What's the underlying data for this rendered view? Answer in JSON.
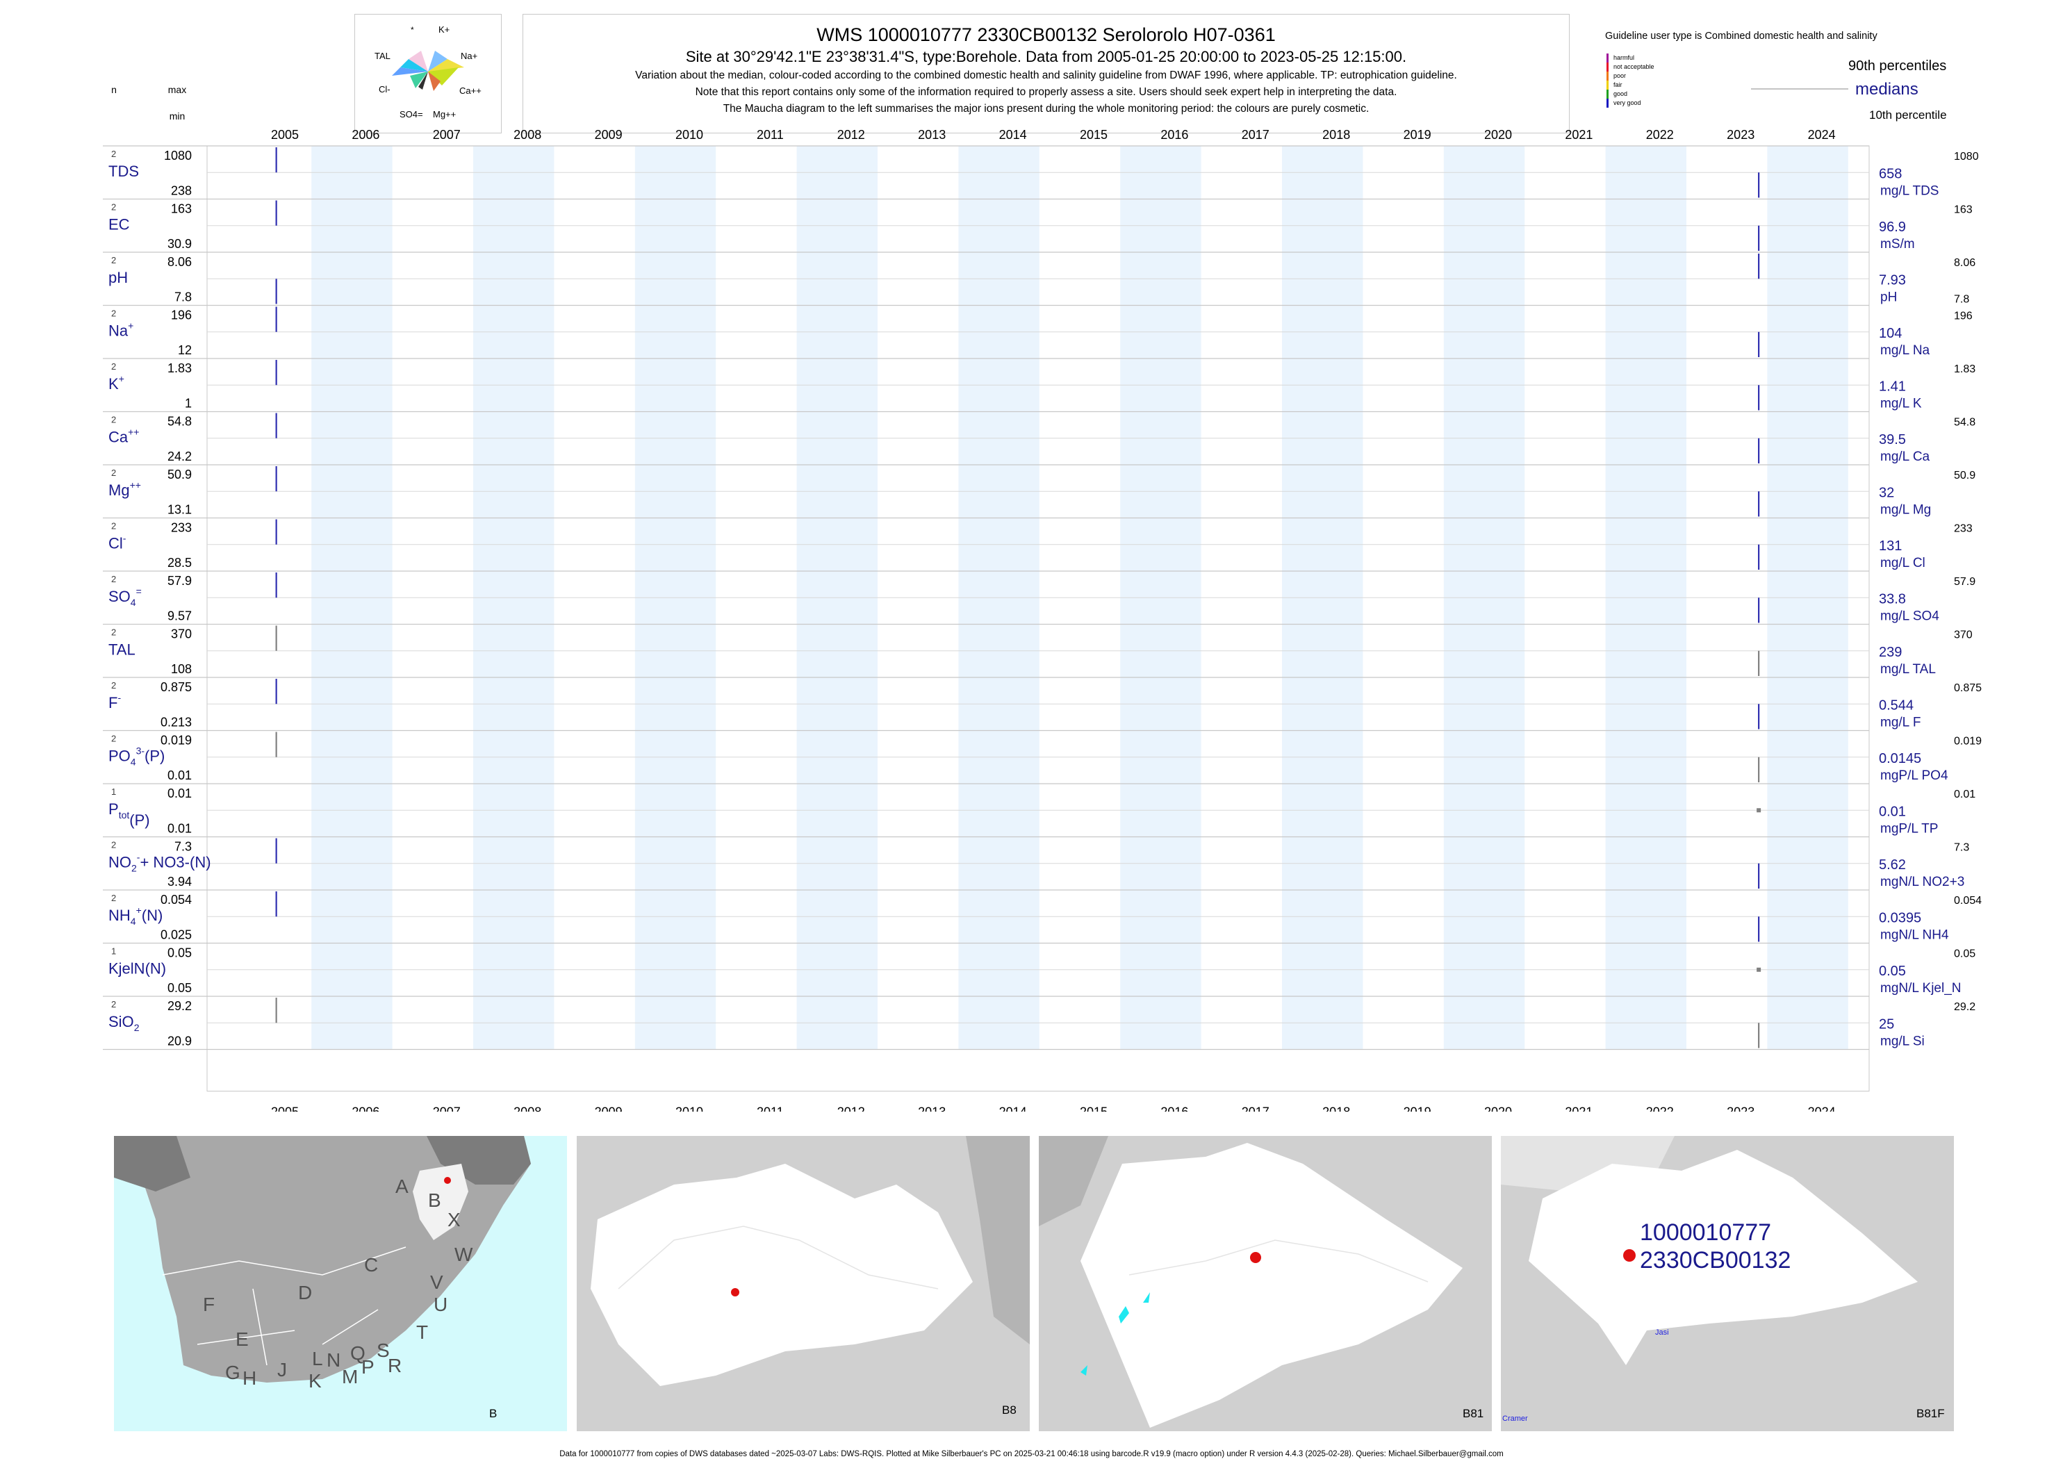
{
  "header": {
    "title": "WMS 1000010777 2330CB00132 Serolorolo H07-0361",
    "site_line": "Site at 30°29'42.1\"E 23°38'31.4\"S, type:Borehole.  Data from 2005-01-25 20:00:00 to 2023-05-25 12:15:00.",
    "note1": "Variation about the median,  colour-coded according to the combined domestic health and salinity guideline from DWAF 1996, where applicable. TP: eutrophication guideline.",
    "note2": "Note that this report contains only some of the information required to properly assess a site. Users should seek expert help in interpreting the data.",
    "note3": "The Maucha diagram to the left summarises the major ions present during the whole monitoring period: the colours are purely cosmetic."
  },
  "maucha": {
    "labels": [
      "*",
      "K+",
      "TAL",
      "Na+",
      "Cl-",
      "Ca++",
      "SO4=",
      "Mg++"
    ]
  },
  "legend": {
    "guideline_user": "Guideline user type is Combined domestic health and salinity",
    "classes": [
      {
        "label": "harmful",
        "color": "#a0149a"
      },
      {
        "label": "not acceptable",
        "color": "#e8102a"
      },
      {
        "label": "poor",
        "color": "#f07818"
      },
      {
        "label": "fair",
        "color": "#f0d000"
      },
      {
        "label": "good",
        "color": "#20a020"
      },
      {
        "label": "very good",
        "color": "#1818c0"
      }
    ],
    "p90": "90th percentiles",
    "medians": "medians",
    "p10": "10th percentile"
  },
  "column_headers": {
    "n": "n",
    "max": "max",
    "min": "min"
  },
  "chart_data": {
    "type": "strip",
    "x_range": [
      2005,
      2024
    ],
    "years": [
      "2005",
      "2006",
      "2007",
      "2008",
      "2009",
      "2010",
      "2011",
      "2012",
      "2013",
      "2014",
      "2015",
      "2016",
      "2017",
      "2018",
      "2019",
      "2020",
      "2021",
      "2022",
      "2023",
      "2024"
    ],
    "sample_dates": [
      "2005-01-25",
      "2023-05-25"
    ],
    "rows": [
      {
        "label": "TDS",
        "sup": "",
        "sub": "",
        "tail": "",
        "n": "2",
        "max": "1080",
        "min": "238",
        "median": "658",
        "unit": "mg/L TDS",
        "values": [
          1080,
          238
        ],
        "color": "#3030b0"
      },
      {
        "label": "EC",
        "sup": "",
        "sub": "",
        "tail": "",
        "n": "2",
        "max": "163",
        "min": "30.9",
        "median": "96.9",
        "unit": "mS/m",
        "values": [
          163,
          30.9
        ],
        "color": "#3030b0"
      },
      {
        "label": "pH",
        "sup": "",
        "sub": "",
        "tail": "",
        "n": "2",
        "max": "8.06",
        "min": "7.8",
        "median": "7.93",
        "unit": "pH",
        "values": [
          7.8,
          8.06
        ],
        "color": "#3030b0"
      },
      {
        "label": "Na",
        "sup": "+",
        "sub": "",
        "tail": "",
        "n": "2",
        "max": "196",
        "min": "12",
        "median": "104",
        "unit": "mg/L Na",
        "values": [
          196,
          12
        ],
        "color": "#3030b0"
      },
      {
        "label": "K",
        "sup": "+",
        "sub": "",
        "tail": "",
        "n": "2",
        "max": "1.83",
        "min": "1",
        "median": "1.41",
        "unit": "mg/L K",
        "values": [
          1.83,
          1
        ],
        "color": "#3030b0"
      },
      {
        "label": "Ca",
        "sup": "++",
        "sub": "",
        "tail": "",
        "n": "2",
        "max": "54.8",
        "min": "24.2",
        "median": "39.5",
        "unit": "mg/L Ca",
        "values": [
          54.8,
          24.2
        ],
        "color": "#3030b0"
      },
      {
        "label": "Mg",
        "sup": "++",
        "sub": "",
        "tail": "",
        "n": "2",
        "max": "50.9",
        "min": "13.1",
        "median": "32",
        "unit": "mg/L Mg",
        "values": [
          50.9,
          13.1
        ],
        "color": "#3030b0"
      },
      {
        "label": "Cl",
        "sup": "-",
        "sub": "",
        "tail": "",
        "n": "2",
        "max": "233",
        "min": "28.5",
        "median": "131",
        "unit": "mg/L Cl",
        "values": [
          233,
          28.5
        ],
        "color": "#3030b0"
      },
      {
        "label": "SO",
        "sup": "=",
        "sub": "4",
        "tail": "",
        "n": "2",
        "max": "57.9",
        "min": "9.57",
        "median": "33.8",
        "unit": "mg/L SO4",
        "values": [
          57.9,
          9.57
        ],
        "color": "#3030b0"
      },
      {
        "label": "TAL",
        "sup": "",
        "sub": "",
        "tail": "",
        "n": "2",
        "max": "370",
        "min": "108",
        "median": "239",
        "unit": "mg/L TAL",
        "values": [
          370,
          108
        ],
        "color": "#808080"
      },
      {
        "label": "F",
        "sup": "-",
        "sub": "",
        "tail": "",
        "n": "2",
        "max": "0.875",
        "min": "0.213",
        "median": "0.544",
        "unit": "mg/L F",
        "values": [
          0.875,
          0.213
        ],
        "color": "#3030b0"
      },
      {
        "label": "PO",
        "sup": "3-",
        "sub": "4",
        "tail": "(P)",
        "n": "2",
        "max": "0.019",
        "min": "0.01",
        "median": "0.0145",
        "unit": "mgP/L PO4",
        "values": [
          0.019,
          0.01
        ],
        "color": "#808080"
      },
      {
        "label": "P",
        "sup": "",
        "sub": "tot",
        "tail": "(P)",
        "n": "1",
        "max": "0.01",
        "min": "0.01",
        "median": "0.01",
        "unit": "mgP/L TP",
        "values": [
          null,
          0.01
        ],
        "color": "#808080"
      },
      {
        "label": "NO",
        "sup": "-",
        "sub": "2",
        "tail": "+ NO3-(N)",
        "n": "2",
        "max": "7.3",
        "min": "3.94",
        "median": "5.62",
        "unit": "mgN/L NO2+3",
        "values": [
          7.3,
          3.94
        ],
        "color": "#3030b0"
      },
      {
        "label": "NH",
        "sup": "+",
        "sub": "4",
        "tail": "(N)",
        "n": "2",
        "max": "0.054",
        "min": "0.025",
        "median": "0.0395",
        "unit": "mgN/L NH4",
        "values": [
          0.054,
          0.025
        ],
        "color": "#3030b0"
      },
      {
        "label": "KjelN(N)",
        "sup": "",
        "sub": "",
        "tail": "",
        "n": "1",
        "max": "0.05",
        "min": "0.05",
        "median": "0.05",
        "unit": "mgN/L Kjel_N",
        "values": [
          null,
          0.05
        ],
        "color": "#808080"
      },
      {
        "label": "SiO",
        "sup": "",
        "sub": "2",
        "tail": "",
        "n": "2",
        "max": "29.2",
        "min": "20.9",
        "median": "25",
        "unit": "mg/L Si",
        "values": [
          29.2,
          20.9
        ],
        "color": "#808080"
      }
    ]
  },
  "maps": {
    "regions": [
      "A",
      "B",
      "X",
      "C",
      "W",
      "D",
      "V",
      "U",
      "F",
      "E",
      "T",
      "L",
      "N",
      "Q",
      "S",
      "G",
      "H",
      "J",
      "K",
      "M",
      "P",
      "R"
    ],
    "panel_labels": [
      "B",
      "B8",
      "B81",
      "B81F"
    ],
    "site_id": "1000010777",
    "site_code": "2330CB00132",
    "river_labels": [
      "Jasi",
      "Cramer"
    ]
  },
  "footer": "Data for 1000010777 from copies of DWS databases dated ~2025-03-07 Labs: DWS-RQIS. Plotted at Mike Silberbauer's PC on 2025-03-21 00:46:18 using barcode.R v19.9 (macro option) under R version 4.4.3 (2025-02-28). Queries: Michael.Silberbauer@gmail.com"
}
